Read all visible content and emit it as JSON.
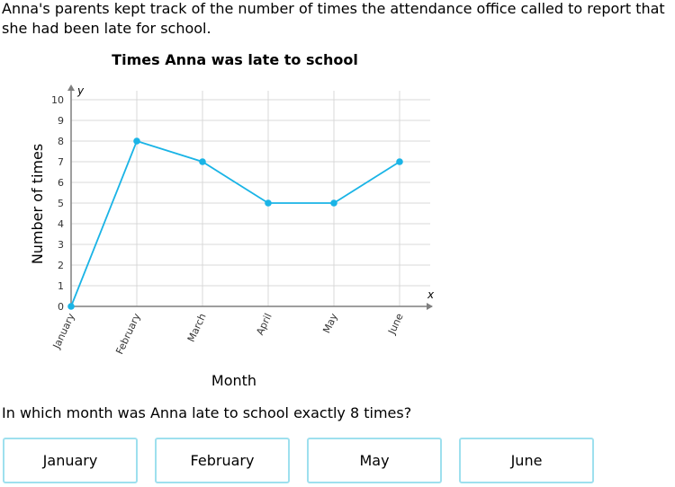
{
  "intro_text": "Anna's parents kept track of the number of times the attendance office called to report that she had been late for school.",
  "question": "In which month was Anna late to school exactly 8 times?",
  "answer_choices": [
    "January",
    "February",
    "May",
    "June"
  ],
  "colors": {
    "line": "#1ab4e6",
    "grid": "#d9d9d9",
    "choice_border": "#9ee0ee",
    "axis": "#7f7f7f"
  },
  "chart_data": {
    "type": "line",
    "title": "Times Anna was late to school",
    "xlabel": "Month",
    "ylabel": "Number of times",
    "x_axis_var": "x",
    "y_axis_var": "y",
    "categories": [
      "January",
      "February",
      "March",
      "April",
      "May",
      "June"
    ],
    "values": [
      0,
      8,
      7,
      5,
      5,
      7
    ],
    "ylim": [
      0,
      10
    ],
    "yticks": [
      "0",
      "1",
      "2",
      "3",
      "4",
      "5",
      "6",
      "7",
      "8",
      "9",
      "10"
    ],
    "grid": true,
    "markers": true
  }
}
